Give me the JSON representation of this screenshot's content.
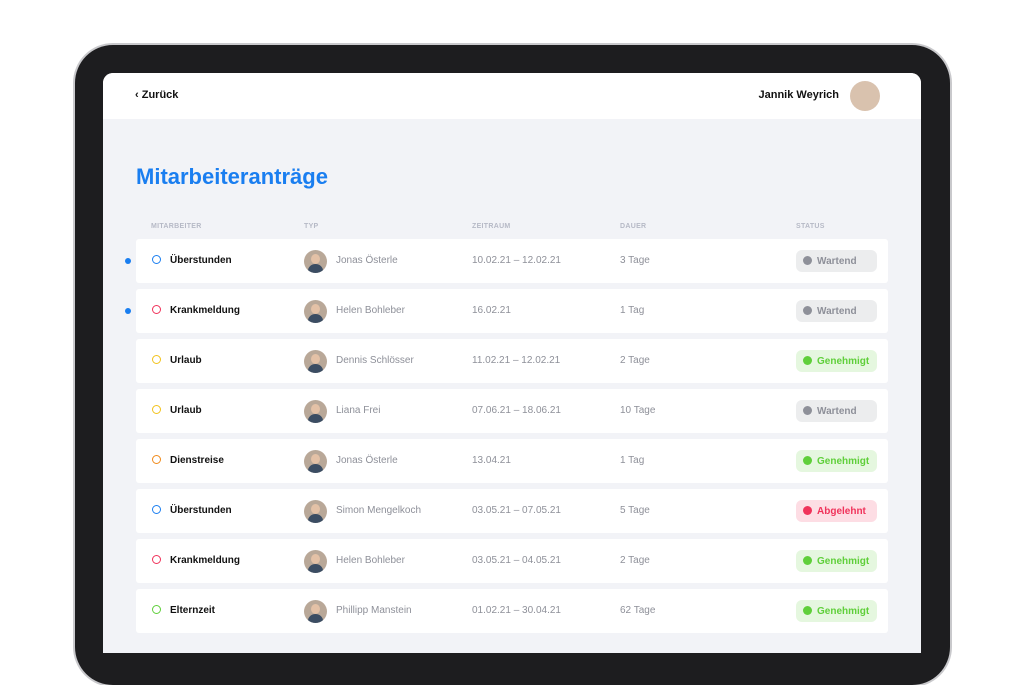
{
  "header": {
    "back": "Zurück",
    "user": "Jannik Weyrich"
  },
  "title": "Mitarbeiteranträge",
  "table": {
    "columns": [
      "MITARBEITER",
      "TYP",
      "ZEITRAUM",
      "DAUER",
      "STATUS"
    ],
    "rows": [
      {
        "unread": true,
        "type": "Überstunden",
        "icon_color": "#1a7ef0",
        "employee": "Jonas Österle",
        "period": "10.02.21 – 12.02.21",
        "duration": "3 Tage",
        "status": "Wartend",
        "status_color": "#8e9099"
      },
      {
        "unread": true,
        "type": "Krankmeldung",
        "icon_color": "#f0325a",
        "employee": "Helen Bohleber",
        "period": "16.02.21",
        "duration": "1 Tag",
        "status": "Wartend",
        "status_color": "#8e9099"
      },
      {
        "unread": false,
        "type": "Urlaub",
        "icon_color": "#f2c21b",
        "employee": "Dennis Schlösser",
        "period": "11.02.21 – 12.02.21",
        "duration": "2 Tage",
        "status": "Genehmigt",
        "status_color": "#5fcf3a"
      },
      {
        "unread": false,
        "type": "Urlaub",
        "icon_color": "#f2c21b",
        "employee": "Liana Frei",
        "period": "07.06.21 – 18.06.21",
        "duration": "10 Tage",
        "status": "Wartend",
        "status_color": "#8e9099"
      },
      {
        "unread": false,
        "type": "Dienstreise",
        "icon_color": "#f08a1a",
        "employee": "Jonas Österle",
        "period": "13.04.21",
        "duration": "1 Tag",
        "status": "Genehmigt",
        "status_color": "#5fcf3a"
      },
      {
        "unread": false,
        "type": "Überstunden",
        "icon_color": "#1a7ef0",
        "employee": "Simon Mengelkoch",
        "period": "03.05.21 – 07.05.21",
        "duration": "5 Tage",
        "status": "Abgelehnt",
        "status_color": "#f0325a"
      },
      {
        "unread": false,
        "type": "Krankmeldung",
        "icon_color": "#f0325a",
        "employee": "Helen Bohleber",
        "period": "03.05.21 – 04.05.21",
        "duration": "2 Tage",
        "status": "Genehmigt",
        "status_color": "#5fcf3a"
      },
      {
        "unread": false,
        "type": "Elternzeit",
        "icon_color": "#5fcf3a",
        "employee": "Phillipp Manstein",
        "period": "01.02.21 – 30.04.21",
        "duration": "62 Tage",
        "status": "Genehmigt",
        "status_color": "#5fcf3a"
      }
    ]
  }
}
